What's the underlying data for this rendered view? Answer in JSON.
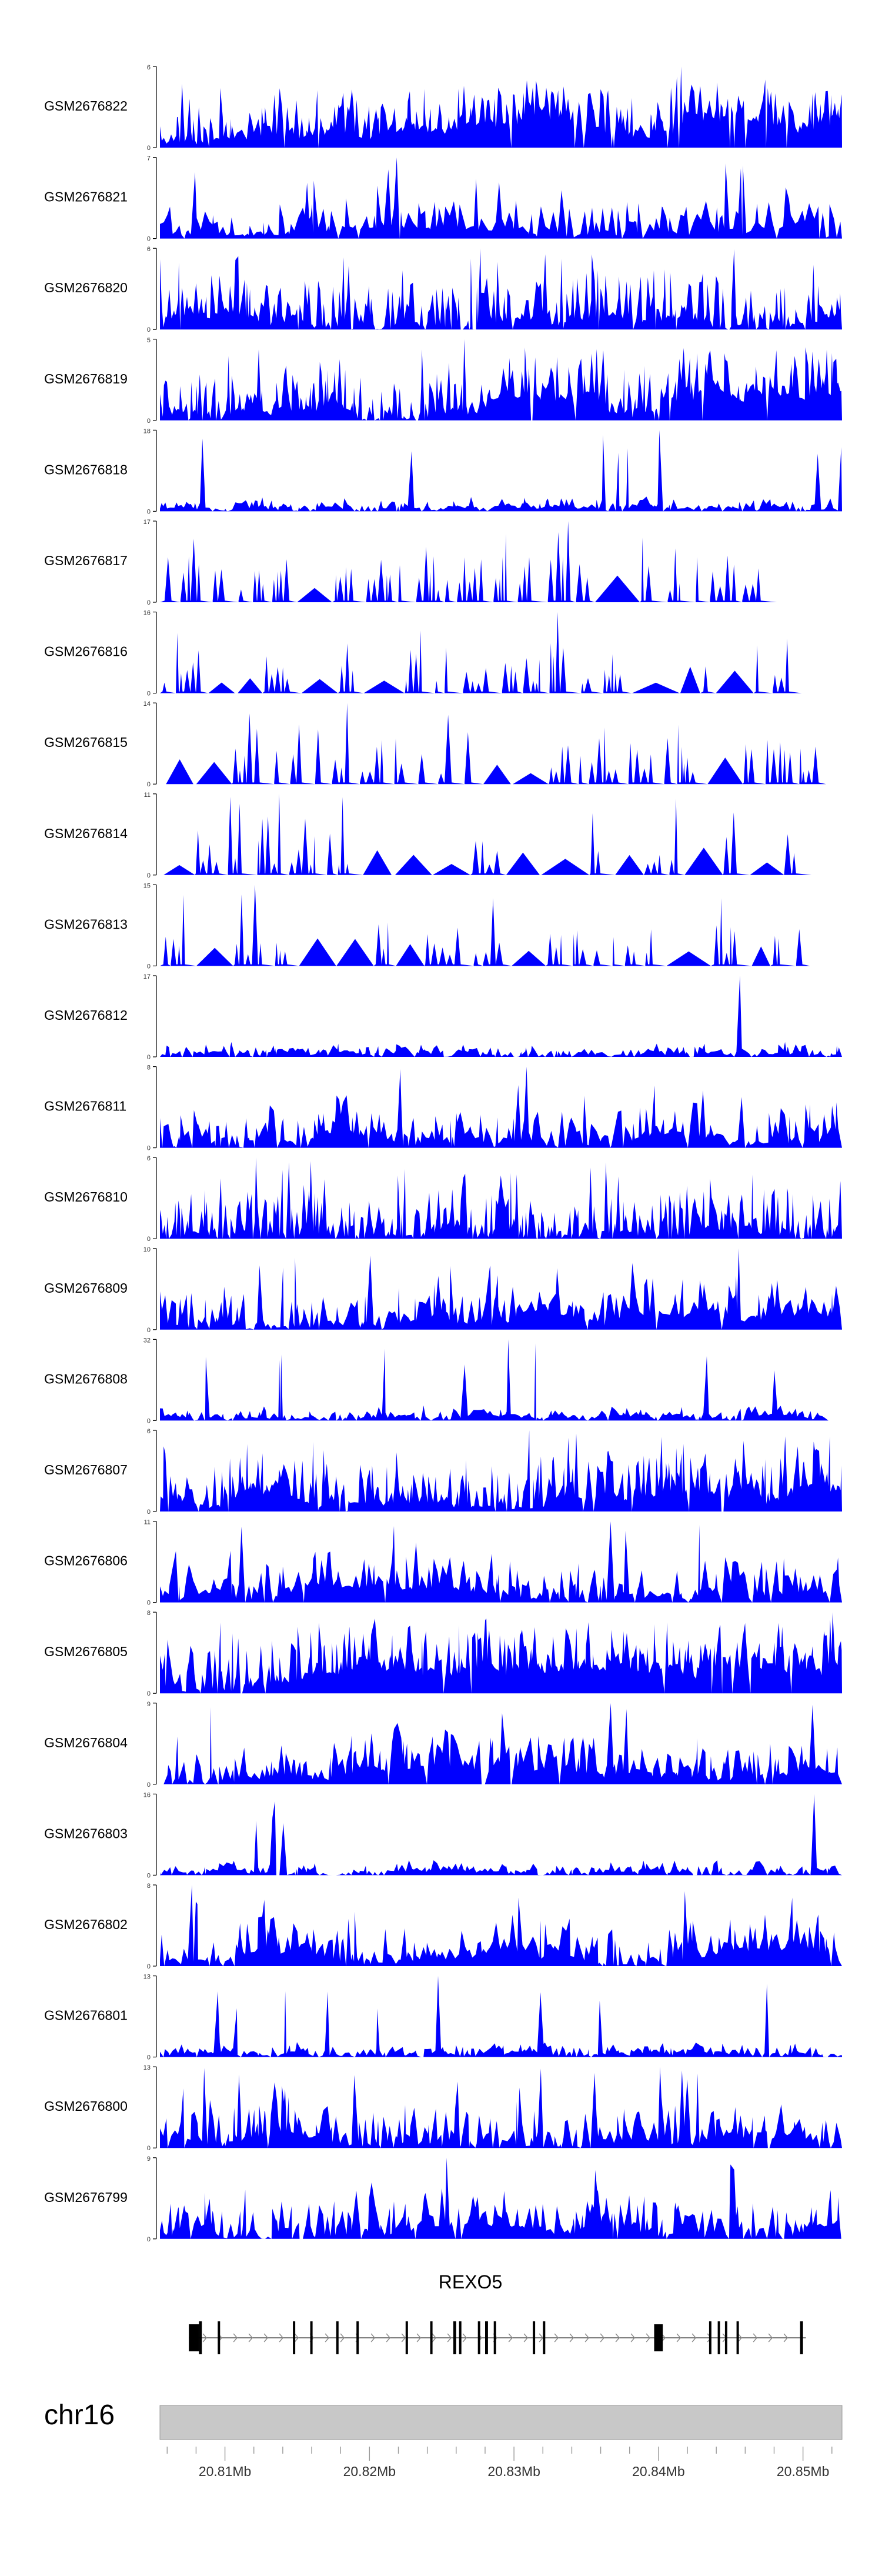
{
  "chart_data": {
    "type": "area",
    "title": "",
    "chromosome": "chr16",
    "gene": {
      "name": "REXO5",
      "strand": "+",
      "start": 20.8075,
      "end": 20.8502,
      "exons": [
        {
          "start": 20.8075,
          "end": 20.8082
        },
        {
          "start": 20.8082,
          "end": 20.8084
        },
        {
          "start": 20.8095,
          "end": 20.8096
        },
        {
          "start": 20.8147,
          "end": 20.8148
        },
        {
          "start": 20.8159,
          "end": 20.816
        },
        {
          "start": 20.8177,
          "end": 20.8178
        },
        {
          "start": 20.8191,
          "end": 20.8192
        },
        {
          "start": 20.8225,
          "end": 20.8226
        },
        {
          "start": 20.8242,
          "end": 20.8243
        },
        {
          "start": 20.8258,
          "end": 20.826
        },
        {
          "start": 20.8262,
          "end": 20.8263
        },
        {
          "start": 20.8275,
          "end": 20.8276
        },
        {
          "start": 20.828,
          "end": 20.8282
        },
        {
          "start": 20.8286,
          "end": 20.8287
        },
        {
          "start": 20.8313,
          "end": 20.8314
        },
        {
          "start": 20.832,
          "end": 20.8321
        },
        {
          "start": 20.8397,
          "end": 20.8403
        },
        {
          "start": 20.8435,
          "end": 20.8436
        },
        {
          "start": 20.8441,
          "end": 20.8442
        },
        {
          "start": 20.8446,
          "end": 20.8447
        },
        {
          "start": 20.8454,
          "end": 20.8455
        },
        {
          "start": 20.8498,
          "end": 20.85
        }
      ]
    },
    "x": {
      "unit": "Mb",
      "range": [
        20.8055,
        20.8527
      ],
      "ticks": [
        20.81,
        20.82,
        20.83,
        20.84,
        20.85
      ],
      "tick_labels": [
        "20.81Mb",
        "20.82Mb",
        "20.83Mb",
        "20.84Mb",
        "20.85Mb"
      ]
    },
    "tracks": [
      {
        "name": "GSM2676822",
        "ymax": 6,
        "seed": 822,
        "profile": "dense",
        "tail": 1.0
      },
      {
        "name": "GSM2676821",
        "ymax": 7,
        "seed": 821,
        "profile": "sparse",
        "tail": 1.0
      },
      {
        "name": "GSM2676820",
        "ymax": 6,
        "seed": 820,
        "profile": "dense",
        "tail": 1.0
      },
      {
        "name": "GSM2676819",
        "ymax": 5,
        "seed": 819,
        "profile": "dense",
        "tail": 1.0
      },
      {
        "name": "GSM2676818",
        "ymax": 18,
        "seed": 818,
        "profile": "lowspiky",
        "tail": 1.0
      },
      {
        "name": "GSM2676817",
        "ymax": 17,
        "seed": 717,
        "profile": "triangles",
        "tail": 0.93
      },
      {
        "name": "GSM2676816",
        "ymax": 16,
        "seed": 716,
        "profile": "triangles",
        "tail": 0.93
      },
      {
        "name": "GSM2676815",
        "ymax": 14,
        "seed": 715,
        "profile": "triangles",
        "tail": 0.97
      },
      {
        "name": "GSM2676814",
        "ymax": 11,
        "seed": 714,
        "profile": "triangles",
        "tail": 1.0
      },
      {
        "name": "GSM2676813",
        "ymax": 15,
        "seed": 713,
        "profile": "triangles",
        "tail": 0.96
      },
      {
        "name": "GSM2676812",
        "ymax": 17,
        "seed": 812,
        "profile": "lowspiky",
        "tail": 1.0
      },
      {
        "name": "GSM2676811",
        "ymax": 8,
        "seed": 811,
        "profile": "medium",
        "tail": 1.0
      },
      {
        "name": "GSM2676810",
        "ymax": 6,
        "seed": 810,
        "profile": "dense",
        "tail": 1.0
      },
      {
        "name": "GSM2676809",
        "ymax": 10,
        "seed": 809,
        "profile": "medium",
        "tail": 1.0
      },
      {
        "name": "GSM2676808",
        "ymax": 32,
        "seed": 808,
        "profile": "lowspiky",
        "tail": 0.98
      },
      {
        "name": "GSM2676807",
        "ymax": 6,
        "seed": 807,
        "profile": "dense",
        "tail": 1.0
      },
      {
        "name": "GSM2676806",
        "ymax": 11,
        "seed": 806,
        "profile": "medium",
        "tail": 1.0
      },
      {
        "name": "GSM2676805",
        "ymax": 8,
        "seed": 805,
        "profile": "dense",
        "tail": 1.0
      },
      {
        "name": "GSM2676804",
        "ymax": 9,
        "seed": 804,
        "profile": "medium",
        "tail": 1.0
      },
      {
        "name": "GSM2676803",
        "ymax": 16,
        "seed": 803,
        "profile": "lowspiky",
        "tail": 1.0
      },
      {
        "name": "GSM2676802",
        "ymax": 8,
        "seed": 802,
        "profile": "medium",
        "tail": 1.0
      },
      {
        "name": "GSM2676801",
        "ymax": 13,
        "seed": 801,
        "profile": "lowspiky",
        "tail": 1.0
      },
      {
        "name": "GSM2676800",
        "ymax": 13,
        "seed": 800,
        "profile": "medium",
        "tail": 1.0
      },
      {
        "name": "GSM2676799",
        "ymax": 9,
        "seed": 799,
        "profile": "medium",
        "tail": 1.0
      }
    ]
  },
  "colors": {
    "signal": "#0000ff",
    "axis": "#000000",
    "ideogram": "#c8c8c8",
    "ideogram_edge": "#999999",
    "tick": "#999999",
    "text": "#000000",
    "label_text": "#333333"
  }
}
